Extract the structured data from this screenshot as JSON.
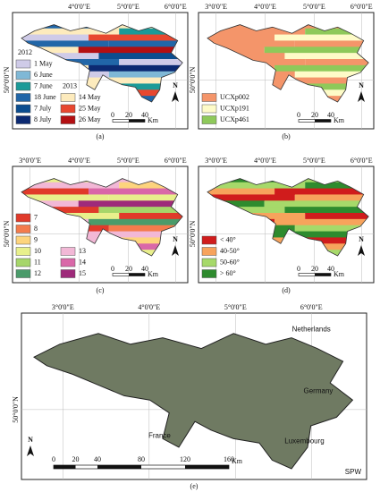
{
  "panels": [
    {
      "caption": "(a)",
      "top_labels": [
        "4°0'0\"E",
        "5°0'0\"E",
        "6°0'0\"E"
      ],
      "left_label": "50°0'0\"N",
      "north": "N",
      "scale": {
        "ticks": [
          "0",
          "20",
          "40"
        ],
        "unit": "Km"
      },
      "legend_groups": [
        {
          "title": "2012",
          "items": [
            {
              "label": "1 May",
              "color": "#cfcbe8"
            },
            {
              "label": "6 June",
              "color": "#7fb8d6"
            },
            {
              "label": "7 June",
              "color": "#1b9a98"
            },
            {
              "label": "18 June",
              "color": "#2166a8"
            },
            {
              "label": "7 July",
              "color": "#0b4d8f"
            },
            {
              "label": "8 July",
              "color": "#0c2a72"
            }
          ]
        },
        {
          "title": "2013",
          "items": [
            {
              "label": "14 May",
              "color": "#fdebbd"
            },
            {
              "label": "25 May",
              "color": "#e8472f"
            },
            {
              "label": "26 May",
              "color": "#b30f12"
            }
          ]
        }
      ]
    },
    {
      "caption": "(b)",
      "top_labels": [
        "3°0'0\"E",
        "4°0'0\"E",
        "5°0'0\"E",
        "6°0'0\"E"
      ],
      "left_label": "50°0'0\"N",
      "north": "N",
      "scale": {
        "ticks": [
          "0",
          "20",
          "40"
        ],
        "unit": "Km"
      },
      "legend_groups": [
        {
          "items": [
            {
              "label": "UCXp002",
              "color": "#f4956a"
            },
            {
              "label": "UCXp191",
              "color": "#fefbc8"
            },
            {
              "label": "UCXp461",
              "color": "#8ec95a"
            }
          ]
        }
      ]
    },
    {
      "caption": "(c)",
      "top_labels": [
        "3°0'0\"E",
        "4°0'0\"E",
        "5°0'0\"E",
        "6°0'0\"E"
      ],
      "left_label": "50°0'0\"N",
      "north": "N",
      "scale": {
        "ticks": [
          "0",
          "20",
          "40"
        ],
        "unit": "Km"
      },
      "legend_groups": [
        {
          "items": [
            {
              "label": "7",
              "color": "#e03a2a"
            },
            {
              "label": "8",
              "color": "#f47b4c"
            },
            {
              "label": "9",
              "color": "#fdd47d"
            },
            {
              "label": "10",
              "color": "#e8f08c"
            },
            {
              "label": "11",
              "color": "#a6d66a"
            },
            {
              "label": "12",
              "color": "#4a9b6a"
            }
          ]
        },
        {
          "items": [
            {
              "label": "13",
              "color": "#f2b8d6"
            },
            {
              "label": "14",
              "color": "#d968a8"
            },
            {
              "label": "15",
              "color": "#9e2a7a"
            }
          ]
        }
      ]
    },
    {
      "caption": "(d)",
      "top_labels": [
        "3°0'0\"E",
        "4°0'0\"E",
        "5°0'0\"E",
        "6°0'0\"E"
      ],
      "left_label": "50°0'0\"N",
      "north": "N",
      "scale": {
        "ticks": [
          "0",
          "20",
          "40"
        ],
        "unit": "Km"
      },
      "legend_groups": [
        {
          "items": [
            {
              "label": "< 40°",
              "color": "#d01c1c"
            },
            {
              "label": "40-50°",
              "color": "#f7a35c"
            },
            {
              "label": "50-60°",
              "color": "#a6d96a"
            },
            {
              "label": "> 60°",
              "color": "#2e8b2e"
            }
          ]
        }
      ]
    }
  ],
  "overview": {
    "caption": "(e)",
    "top_labels": [
      "3°0'0\"E",
      "4°0'0\"E",
      "5°0'0\"E",
      "6°0'0\"E"
    ],
    "left_label": "50°0'0\"N",
    "north": "N",
    "countries": [
      "Netherlands",
      "Germany",
      "Luxembourg",
      "France"
    ],
    "credit": "SPW",
    "scale": {
      "ticks": [
        "0",
        "20",
        "40",
        "80",
        "120",
        "160"
      ],
      "unit": "Km"
    }
  }
}
